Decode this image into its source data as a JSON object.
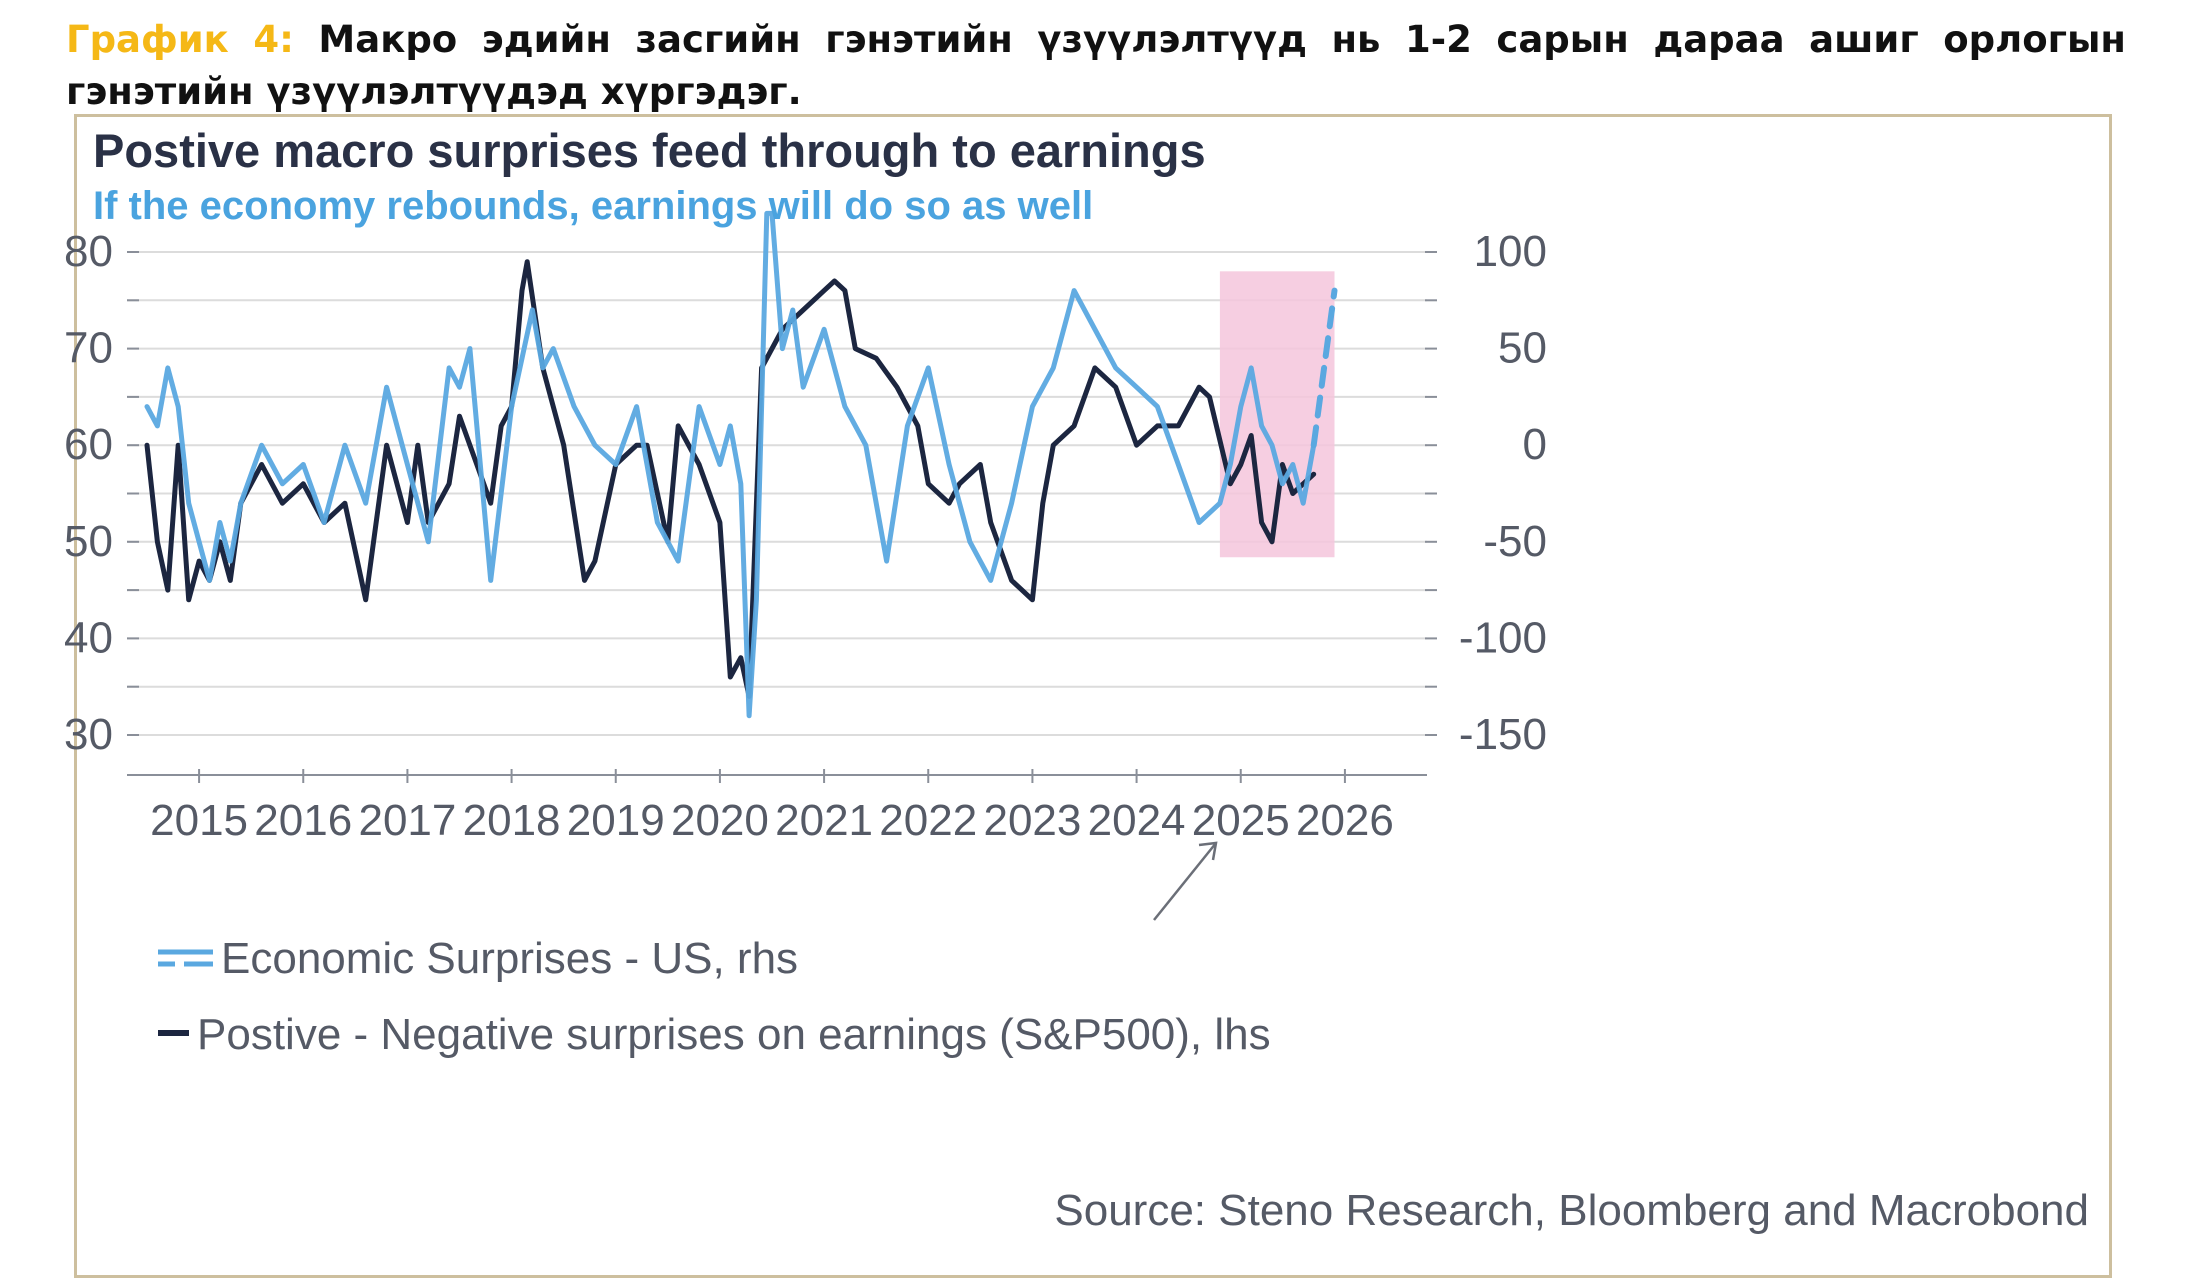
{
  "caption": {
    "label": "График 4:",
    "text": "Макро эдийн засгийн гэнэтийн үзүүлэлтүүд нь 1-2 сарын дараа ашиг орлогын гэнэтийн үзүүлэлтүүдэд хүргэдэг."
  },
  "colors": {
    "title": "#2a3146",
    "subtitle": "#4aa3df",
    "surprise_line": "#5aa8e0",
    "earnings_line": "#1c2640",
    "highlight": "#f4c6dc",
    "axis_text": "#555a66",
    "grid": "#dcdcdc"
  },
  "chart_data": {
    "type": "line",
    "title": "Postive macro surprises feed through to earnings",
    "subtitle": "If the economy rebounds, earnings will do so as well",
    "source": "Source: Steno Research, Bloomberg and Macrobond",
    "x_ticks": [
      "2015",
      "2016",
      "2017",
      "2018",
      "2019",
      "2020",
      "2021",
      "2022",
      "2023",
      "2024",
      "2025",
      "2026"
    ],
    "xlim": [
      2014.5,
      2026.5
    ],
    "y_left": {
      "ticks": [
        "80",
        "70",
        "60",
        "50",
        "40",
        "30"
      ],
      "lim": [
        30,
        80
      ]
    },
    "y_right": {
      "ticks": [
        "100",
        "50",
        "0",
        "-50",
        "-100",
        "-150"
      ],
      "lim": [
        -150,
        100
      ]
    },
    "legend": [
      {
        "label": "Economic Surprises - US, rhs",
        "style": "light-double"
      },
      {
        "label": "Postive - Negative surprises on earnings (S&P500), lhs",
        "style": "dark"
      }
    ],
    "highlight_region": {
      "x": [
        2024.8,
        2025.9
      ],
      "y_right": [
        -58,
        90
      ]
    },
    "series": [
      {
        "name": "Economic Surprises - US",
        "axis": "right",
        "x": [
          2014.5,
          2014.6,
          2014.7,
          2014.8,
          2014.9,
          2015.0,
          2015.1,
          2015.2,
          2015.3,
          2015.4,
          2015.6,
          2015.8,
          2016.0,
          2016.2,
          2016.4,
          2016.6,
          2016.8,
          2017.0,
          2017.2,
          2017.4,
          2017.5,
          2017.6,
          2017.8,
          2018.0,
          2018.2,
          2018.3,
          2018.4,
          2018.6,
          2018.8,
          2019.0,
          2019.2,
          2019.4,
          2019.6,
          2019.8,
          2020.0,
          2020.1,
          2020.2,
          2020.28,
          2020.35,
          2020.45,
          2020.5,
          2020.6,
          2020.7,
          2020.8,
          2021.0,
          2021.2,
          2021.4,
          2021.6,
          2021.8,
          2022.0,
          2022.2,
          2022.4,
          2022.6,
          2022.8,
          2023.0,
          2023.2,
          2023.4,
          2023.6,
          2023.8,
          2024.0,
          2024.2,
          2024.4,
          2024.6,
          2024.8,
          2024.9,
          2025.0,
          2025.1,
          2025.2,
          2025.3,
          2025.4,
          2025.5,
          2025.6,
          2025.7
        ],
        "values": [
          20,
          10,
          40,
          20,
          -30,
          -50,
          -70,
          -40,
          -60,
          -30,
          0,
          -20,
          -10,
          -40,
          0,
          -30,
          30,
          -10,
          -50,
          40,
          30,
          50,
          -70,
          20,
          70,
          40,
          50,
          20,
          0,
          -10,
          20,
          -40,
          -60,
          20,
          -10,
          10,
          -20,
          -140,
          -80,
          120,
          120,
          50,
          70,
          30,
          60,
          20,
          0,
          -60,
          10,
          40,
          -10,
          -50,
          -70,
          -30,
          20,
          40,
          80,
          60,
          40,
          30,
          20,
          -10,
          -40,
          -30,
          -10,
          20,
          40,
          10,
          0,
          -20,
          -10,
          -30,
          0
        ],
        "forecast": {
          "x": [
            2025.7,
            2025.8,
            2025.9
          ],
          "values": [
            0,
            40,
            80
          ]
        }
      },
      {
        "name": "Postive - Negative surprises on earnings (S&P500)",
        "axis": "left",
        "x": [
          2014.5,
          2014.6,
          2014.7,
          2014.8,
          2014.9,
          2015.0,
          2015.1,
          2015.2,
          2015.3,
          2015.4,
          2015.6,
          2015.8,
          2016.0,
          2016.2,
          2016.4,
          2016.6,
          2016.8,
          2017.0,
          2017.1,
          2017.2,
          2017.4,
          2017.5,
          2017.6,
          2017.8,
          2017.9,
          2018.0,
          2018.1,
          2018.15,
          2018.3,
          2018.5,
          2018.7,
          2018.8,
          2019.0,
          2019.2,
          2019.3,
          2019.5,
          2019.6,
          2019.8,
          2020.0,
          2020.1,
          2020.2,
          2020.28,
          2020.4,
          2020.6,
          2020.8,
          2021.0,
          2021.1,
          2021.2,
          2021.3,
          2021.5,
          2021.7,
          2021.9,
          2022.0,
          2022.2,
          2022.3,
          2022.5,
          2022.6,
          2022.8,
          2022.9,
          2023.0,
          2023.1,
          2023.2,
          2023.4,
          2023.6,
          2023.8,
          2024.0,
          2024.2,
          2024.4,
          2024.6,
          2024.7,
          2024.9,
          2025.0,
          2025.1,
          2025.2,
          2025.3,
          2025.4,
          2025.5,
          2025.6,
          2025.7
        ],
        "values": [
          60,
          50,
          45,
          60,
          44,
          48,
          46,
          50,
          46,
          54,
          58,
          54,
          56,
          52,
          54,
          44,
          60,
          52,
          60,
          52,
          56,
          63,
          60,
          54,
          62,
          64,
          76,
          79,
          68,
          60,
          46,
          48,
          58,
          60,
          60,
          50,
          62,
          58,
          52,
          36,
          38,
          34,
          68,
          72,
          74,
          76,
          77,
          76,
          70,
          69,
          66,
          62,
          56,
          54,
          56,
          58,
          52,
          46,
          45,
          44,
          54,
          60,
          62,
          68,
          66,
          60,
          62,
          62,
          66,
          65,
          56,
          58,
          61,
          52,
          50,
          58,
          55,
          56,
          57
        ]
      }
    ]
  }
}
